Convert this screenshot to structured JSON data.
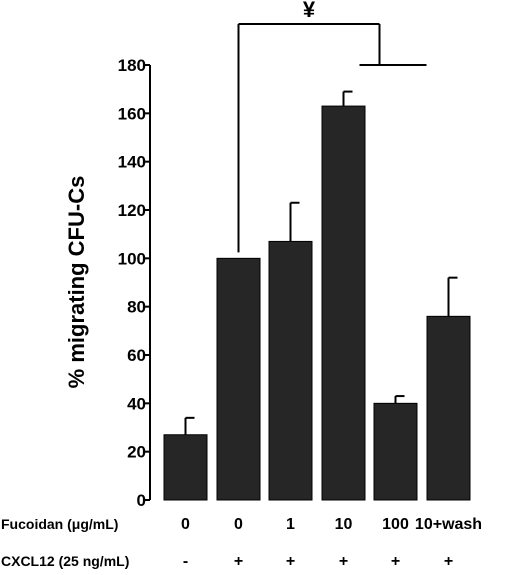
{
  "chart_data": {
    "type": "bar",
    "ylabel": "% migrating CFU-Cs",
    "ylim": [
      0,
      180
    ],
    "yticks": [
      "0",
      "20",
      "40",
      "60",
      "80",
      "100",
      "120",
      "140",
      "160",
      "180"
    ],
    "categories": [
      "0/-",
      "0/+",
      "1/+",
      "10/+",
      "100/+",
      "10+wash/+"
    ],
    "values": [
      27,
      100,
      107,
      163,
      40,
      76
    ],
    "errors": [
      7,
      0,
      16,
      6,
      3,
      16
    ],
    "bar_color": "#262626",
    "rows": [
      {
        "label": "Fucoidan (μg/mL)",
        "values": [
          "0",
          "0",
          "1",
          "10",
          "100",
          "10+wash"
        ]
      },
      {
        "label": "CXCL12 (25 ng/mL)",
        "values": [
          "-",
          "+",
          "+",
          "+",
          "+",
          "+"
        ]
      }
    ],
    "significance": {
      "symbol": "¥",
      "from_index": 1,
      "to_indices": [
        3,
        4,
        5
      ]
    }
  }
}
